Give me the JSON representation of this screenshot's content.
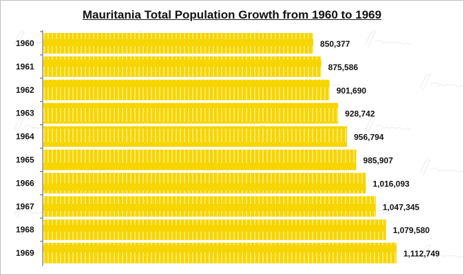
{
  "chart_data": {
    "type": "bar",
    "orientation": "horizontal",
    "title": "Mauritania Total Population Growth from 1960 to 1969",
    "categories": [
      "1960",
      "1961",
      "1962",
      "1963",
      "1964",
      "1965",
      "1966",
      "1967",
      "1968",
      "1969"
    ],
    "values": [
      850377,
      875586,
      901690,
      928742,
      956794,
      985907,
      1016093,
      1047345,
      1079580,
      1112749
    ],
    "data_labels": [
      "850,377",
      "875,586",
      "901,690",
      "928,742",
      "956,794",
      "985,907",
      "1,016,093",
      "1,047,345",
      "1,079,580",
      "1,112,749"
    ],
    "xlabel": "",
    "ylabel": "",
    "xlim": [
      0,
      1112749
    ],
    "grid": false,
    "bar_color": "#f7d500",
    "watermark": "Afrolumni"
  }
}
